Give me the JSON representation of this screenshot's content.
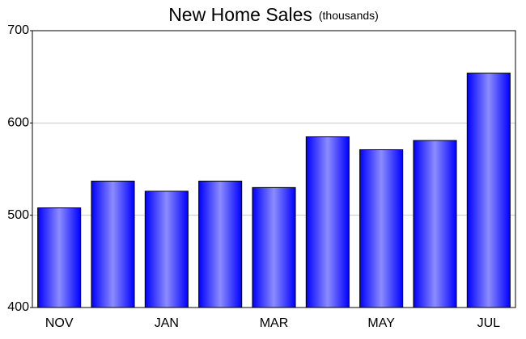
{
  "chart_data": {
    "type": "bar",
    "title": "New Home Sales",
    "subtitle": "(thousands)",
    "categories": [
      "NOV",
      null,
      "JAN",
      null,
      "MAR",
      null,
      "MAY",
      null,
      "JUL"
    ],
    "values": [
      508,
      537,
      526,
      537,
      530,
      585,
      571,
      581,
      654
    ],
    "color": "#0000ff",
    "ylim": [
      400,
      700
    ],
    "yticks": [
      400,
      500,
      600,
      700
    ],
    "grid": true
  }
}
